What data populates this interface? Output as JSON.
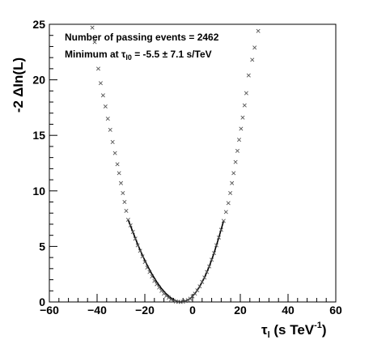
{
  "chart_data": {
    "type": "scatter",
    "xlabel_main": "τ",
    "xlabel_sub": "l",
    "xlabel_rest": " (s TeV",
    "xlabel_sup": "-1",
    "xlabel_close": ")",
    "ylabel": "-2 ΔIn(L)",
    "xlim": [
      -60,
      60
    ],
    "ylim": [
      0,
      25
    ],
    "xticks": [
      -60,
      -40,
      -20,
      0,
      20,
      40,
      60
    ],
    "xtick_labels": [
      "−60",
      "−40",
      "−20",
      "0",
      "20",
      "40",
      "60"
    ],
    "yticks": [
      0,
      5,
      10,
      15,
      20,
      25
    ],
    "ytick_labels": [
      "0",
      "5",
      "10",
      "15",
      "20",
      "25"
    ],
    "grid": false,
    "annotations": {
      "line1": "Number of passing events = 2462",
      "line2_prefix": "Minimum at τ",
      "line2_sub": "l0",
      "line2_rest": " = -5.5 ± 7.1 s/TeV"
    },
    "series": [
      {
        "points": [
          {
            "x": -42.0,
            "y": 24.7
          },
          {
            "x": -41.0,
            "y": 23.4
          },
          {
            "x": -39.5,
            "y": 21.0
          },
          {
            "x": -38.5,
            "y": 19.7
          },
          {
            "x": -37.5,
            "y": 18.6
          },
          {
            "x": -36.5,
            "y": 17.6
          },
          {
            "x": -35.5,
            "y": 16.5
          },
          {
            "x": -34.5,
            "y": 15.5
          },
          {
            "x": -33.5,
            "y": 14.4
          },
          {
            "x": -32.5,
            "y": 13.4
          },
          {
            "x": -31.5,
            "y": 12.4
          },
          {
            "x": -30.8,
            "y": 11.6
          },
          {
            "x": -30.0,
            "y": 10.7
          },
          {
            "x": -29.2,
            "y": 9.8
          },
          {
            "x": -28.5,
            "y": 9.0
          },
          {
            "x": -27.8,
            "y": 8.2
          },
          {
            "x": -27.0,
            "y": 7.4
          },
          {
            "x": -26.0,
            "y": 6.9
          },
          {
            "x": -25.0,
            "y": 6.3
          },
          {
            "x": -24.0,
            "y": 5.7
          },
          {
            "x": -23.0,
            "y": 5.1
          },
          {
            "x": -22.0,
            "y": 4.6
          },
          {
            "x": -21.0,
            "y": 4.1
          },
          {
            "x": -20.0,
            "y": 3.6
          },
          {
            "x": -19.0,
            "y": 3.1
          },
          {
            "x": -18.0,
            "y": 2.7
          },
          {
            "x": -17.0,
            "y": 2.3
          },
          {
            "x": -16.0,
            "y": 1.9
          },
          {
            "x": -15.0,
            "y": 1.6
          },
          {
            "x": -14.0,
            "y": 1.3
          },
          {
            "x": -13.0,
            "y": 1.0
          },
          {
            "x": -12.0,
            "y": 0.75
          },
          {
            "x": -11.0,
            "y": 0.55
          },
          {
            "x": -10.0,
            "y": 0.38
          },
          {
            "x": -9.0,
            "y": 0.22
          },
          {
            "x": -8.0,
            "y": 0.11
          },
          {
            "x": -7.0,
            "y": 0.04
          },
          {
            "x": -6.0,
            "y": 0.01
          },
          {
            "x": -5.0,
            "y": 0.0
          },
          {
            "x": -4.0,
            "y": 0.02
          },
          {
            "x": -3.0,
            "y": 0.08
          },
          {
            "x": -2.0,
            "y": 0.17
          },
          {
            "x": -1.0,
            "y": 0.3
          },
          {
            "x": 0.0,
            "y": 0.5
          },
          {
            "x": 1.0,
            "y": 0.75
          },
          {
            "x": 2.0,
            "y": 1.05
          },
          {
            "x": 3.0,
            "y": 1.4
          },
          {
            "x": 4.0,
            "y": 1.8
          },
          {
            "x": 5.0,
            "y": 2.2
          },
          {
            "x": 6.0,
            "y": 2.7
          },
          {
            "x": 7.0,
            "y": 3.2
          },
          {
            "x": 8.0,
            "y": 3.8
          },
          {
            "x": 9.0,
            "y": 4.4
          },
          {
            "x": 10.0,
            "y": 5.1
          },
          {
            "x": 11.0,
            "y": 5.8
          },
          {
            "x": 12.0,
            "y": 6.5
          },
          {
            "x": 13.0,
            "y": 7.3
          },
          {
            "x": 14.0,
            "y": 8.1
          },
          {
            "x": 15.0,
            "y": 8.9
          },
          {
            "x": 15.8,
            "y": 9.8
          },
          {
            "x": 16.5,
            "y": 10.7
          },
          {
            "x": 17.2,
            "y": 11.6
          },
          {
            "x": 18.0,
            "y": 12.6
          },
          {
            "x": 18.8,
            "y": 13.6
          },
          {
            "x": 19.5,
            "y": 14.6
          },
          {
            "x": 20.3,
            "y": 15.6
          },
          {
            "x": 21.0,
            "y": 16.6
          },
          {
            "x": 21.8,
            "y": 17.7
          },
          {
            "x": 22.5,
            "y": 18.8
          },
          {
            "x": 23.5,
            "y": 20.4
          },
          {
            "x": 25.0,
            "y": 21.8
          },
          {
            "x": 26.0,
            "y": 22.9
          },
          {
            "x": 27.5,
            "y": 24.4
          }
        ]
      }
    ],
    "fit": {
      "type": "line",
      "x": [
        -27,
        -25,
        -23,
        -21,
        -19,
        -17,
        -15,
        -13,
        -11,
        -9,
        -7,
        -5,
        -3,
        -1,
        1,
        3,
        5,
        7,
        9,
        11,
        13
      ],
      "y": [
        7.4,
        6.3,
        5.2,
        4.2,
        3.3,
        2.5,
        1.8,
        1.2,
        0.72,
        0.35,
        0.09,
        0.0,
        0.08,
        0.3,
        0.75,
        1.4,
        2.2,
        3.2,
        4.4,
        5.8,
        7.3
      ]
    }
  }
}
